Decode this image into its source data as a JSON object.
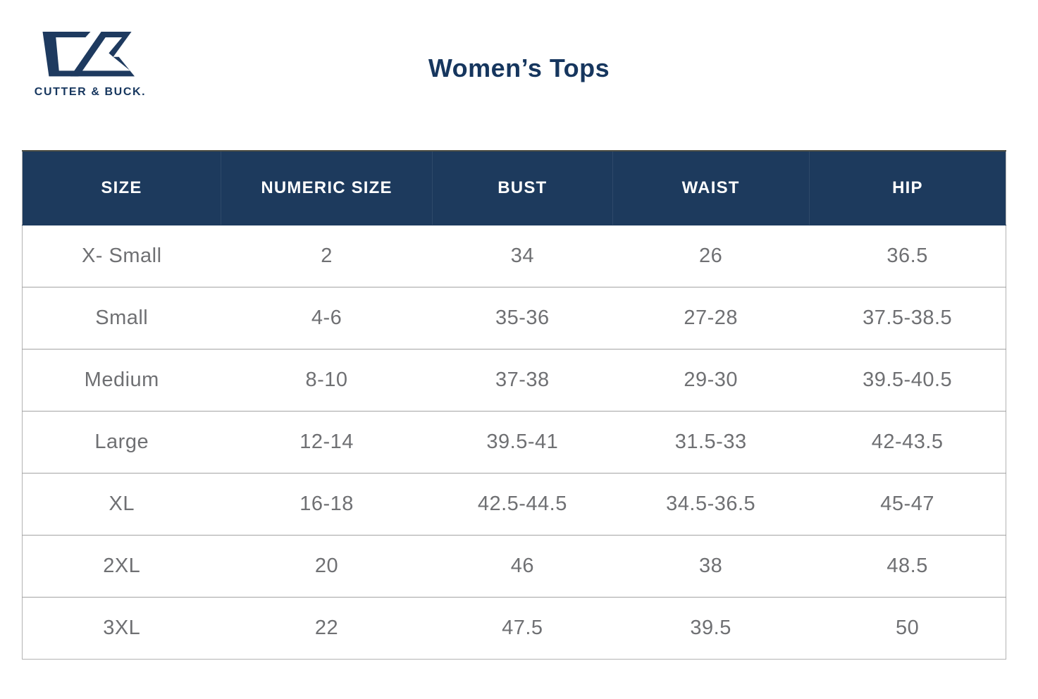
{
  "brand": {
    "monogram": "CB",
    "name": "CUTTER & BUCK."
  },
  "page": {
    "title": "Women’s Tops"
  },
  "colors": {
    "navy_header": "#1d3a5d",
    "navy_brand": "#16365e",
    "body_text": "#6f7073",
    "row_border": "#a3a3a3",
    "outer_border": "#b3b3b3",
    "header_text": "#ffffff"
  },
  "table": {
    "columns": [
      "SIZE",
      "NUMERIC SIZE",
      "BUST",
      "WAIST",
      "HIP"
    ],
    "rows": [
      [
        "X- Small",
        "2",
        "34",
        "26",
        "36.5"
      ],
      [
        "Small",
        "4-6",
        "35-36",
        "27-28",
        "37.5-38.5"
      ],
      [
        "Medium",
        "8-10",
        "37-38",
        "29-30",
        "39.5-40.5"
      ],
      [
        "Large",
        "12-14",
        "39.5-41",
        "31.5-33",
        "42-43.5"
      ],
      [
        "XL",
        "16-18",
        "42.5-44.5",
        "34.5-36.5",
        "45-47"
      ],
      [
        "2XL",
        "20",
        "46",
        "38",
        "48.5"
      ],
      [
        "3XL",
        "22",
        "47.5",
        "39.5",
        "50"
      ]
    ]
  }
}
